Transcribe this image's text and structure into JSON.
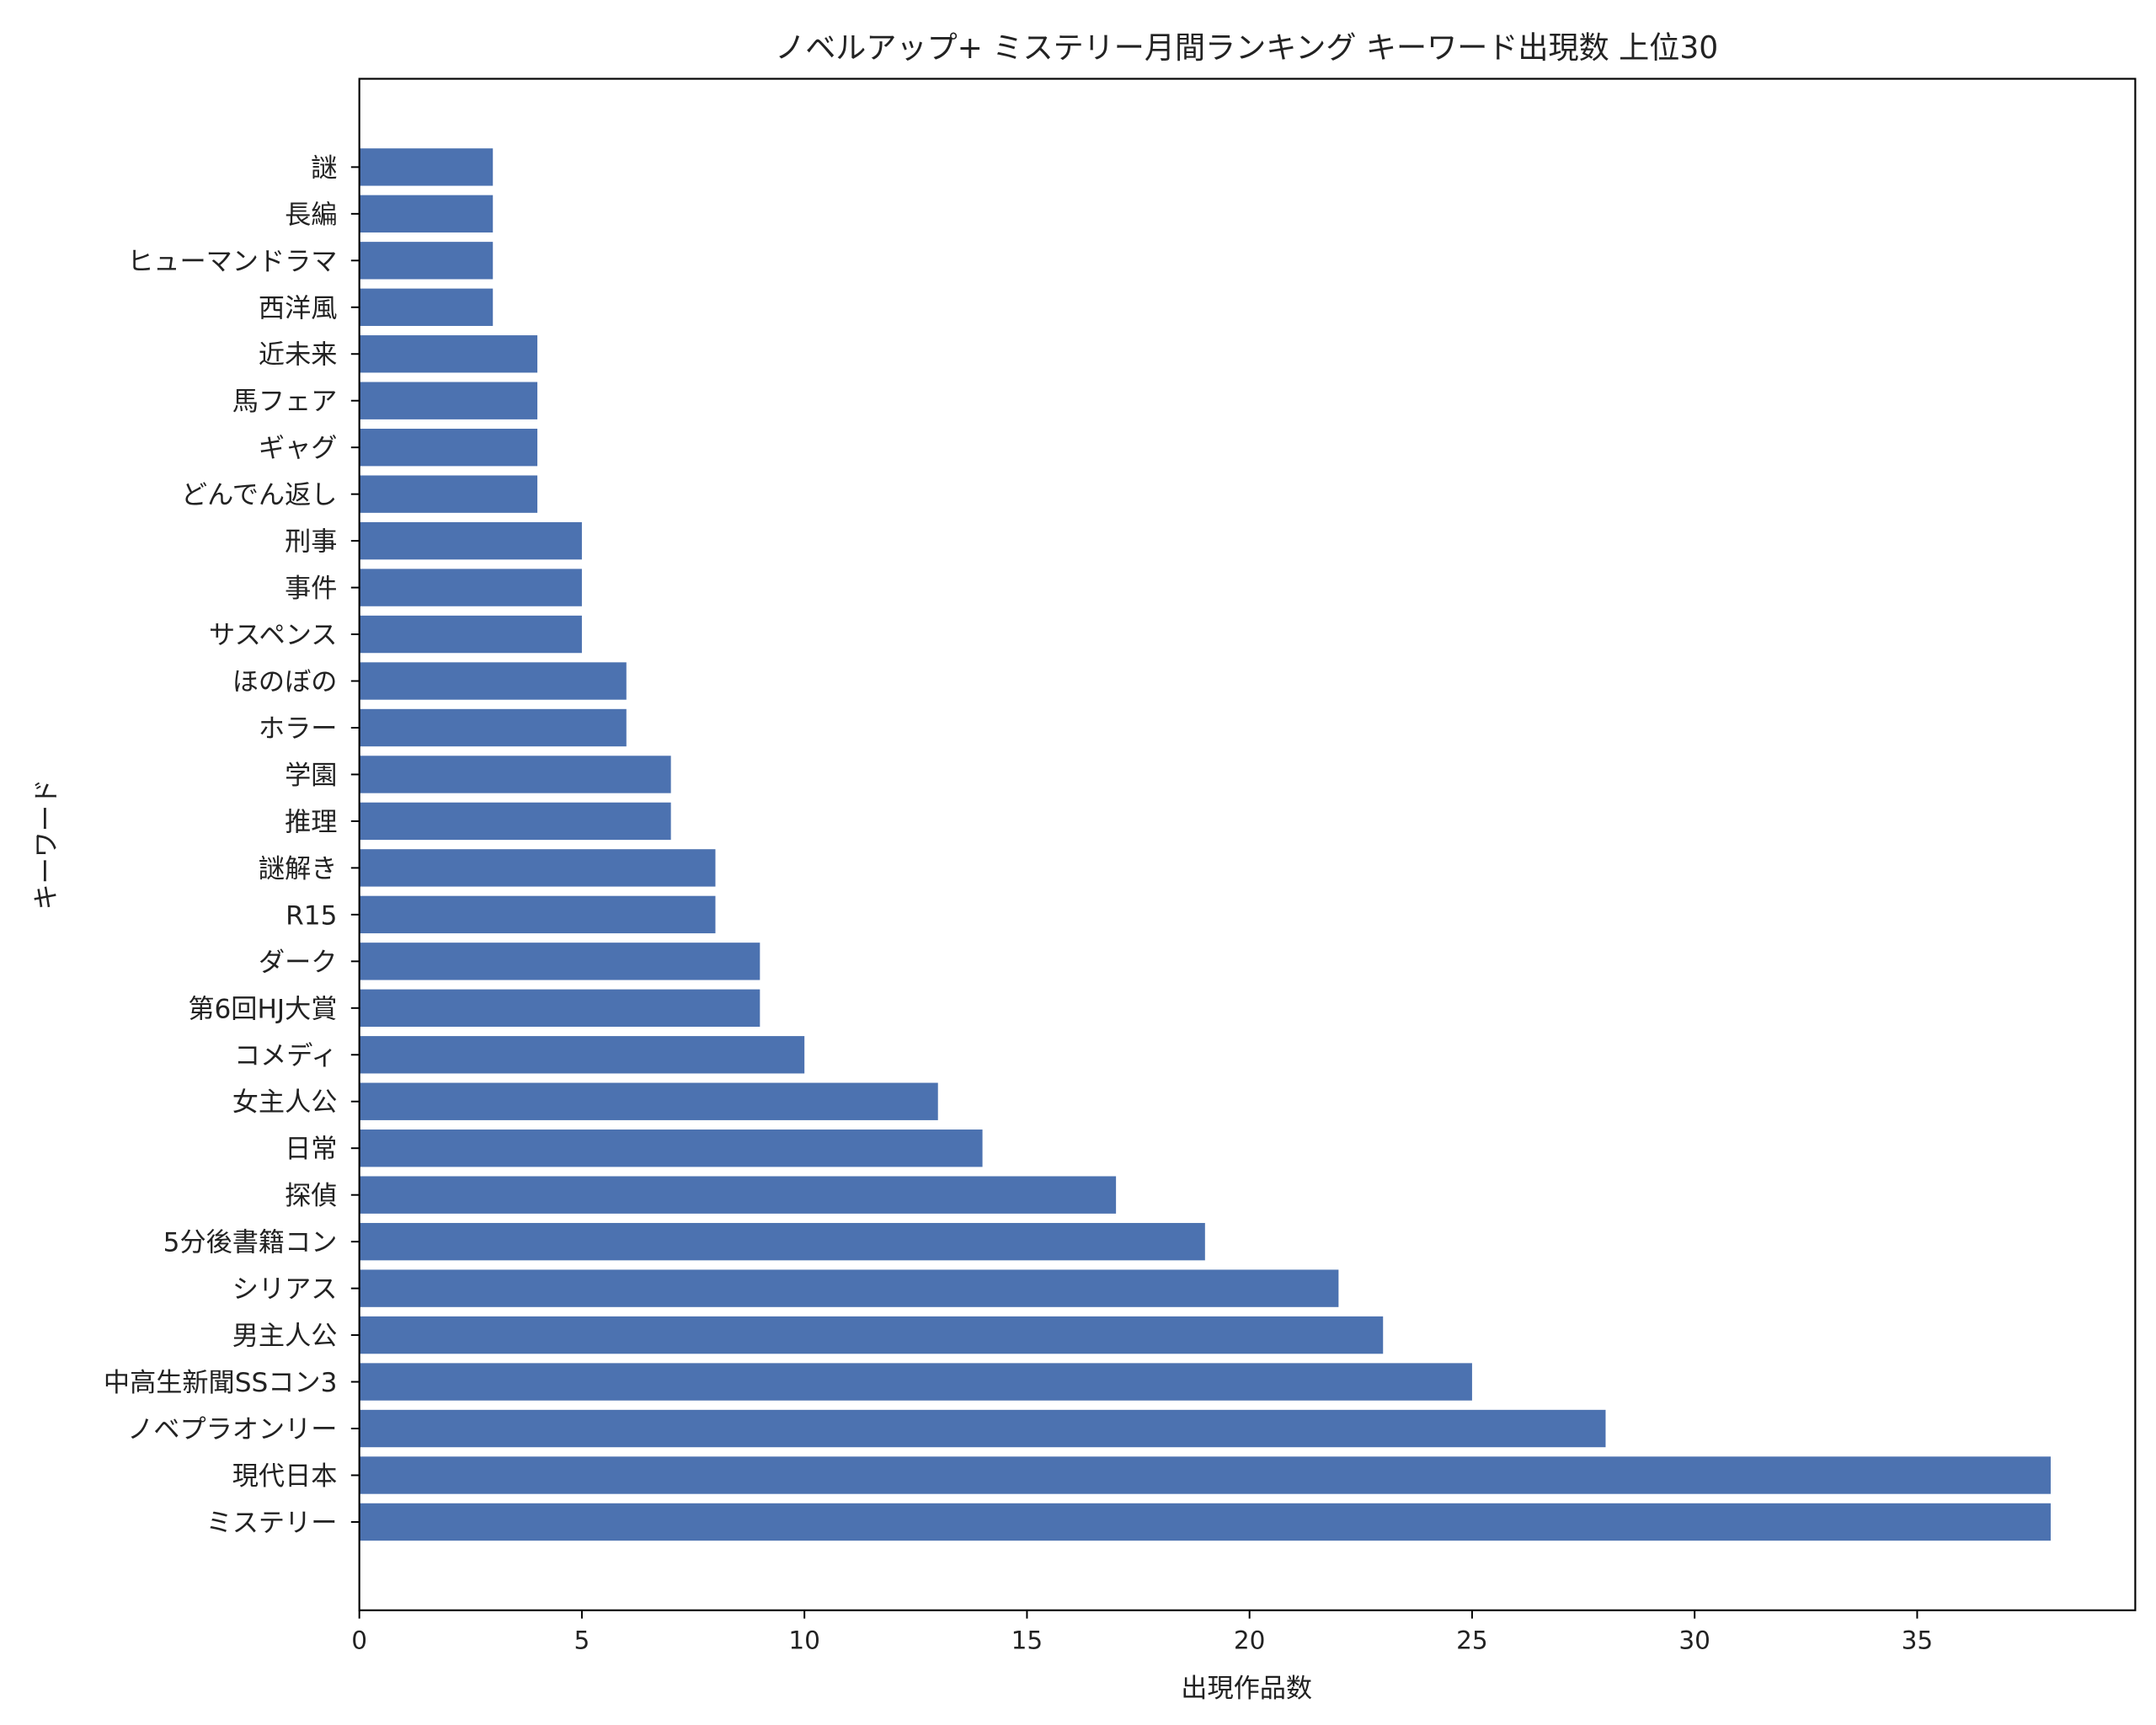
{
  "chart_data": {
    "type": "bar",
    "orientation": "horizontal",
    "title": "ノベルアップ+ ミステリー月間ランキング キーワード出現数 上位30",
    "xlabel": "出現作品数",
    "ylabel": "キーワード",
    "xlim": [
      0,
      39.9
    ],
    "xticks": [
      0,
      5,
      10,
      15,
      20,
      25,
      30,
      35
    ],
    "grid": false,
    "bar_color": "#4c72b0",
    "categories": [
      "ミステリー",
      "現代日本",
      "ノベプラオンリー",
      "中高生新聞SSコン3",
      "男主人公",
      "シリアス",
      "5分後書籍コン",
      "探偵",
      "日常",
      "女主人公",
      "コメディ",
      "第6回HJ大賞",
      "ダーク",
      "R15",
      "謎解き",
      "推理",
      "学園",
      "ホラー",
      "ほのぼの",
      "サスペンス",
      "事件",
      "刑事",
      "どんでん返し",
      "ギャグ",
      "馬フェア",
      "近未来",
      "西洋風",
      "ヒューマンドラマ",
      "長編",
      "謎"
    ],
    "values": [
      38,
      38,
      28,
      25,
      23,
      22,
      19,
      17,
      14,
      13,
      10,
      9,
      9,
      8,
      8,
      7,
      7,
      6,
      6,
      5,
      5,
      5,
      4,
      4,
      4,
      4,
      3,
      3,
      3,
      3
    ]
  }
}
